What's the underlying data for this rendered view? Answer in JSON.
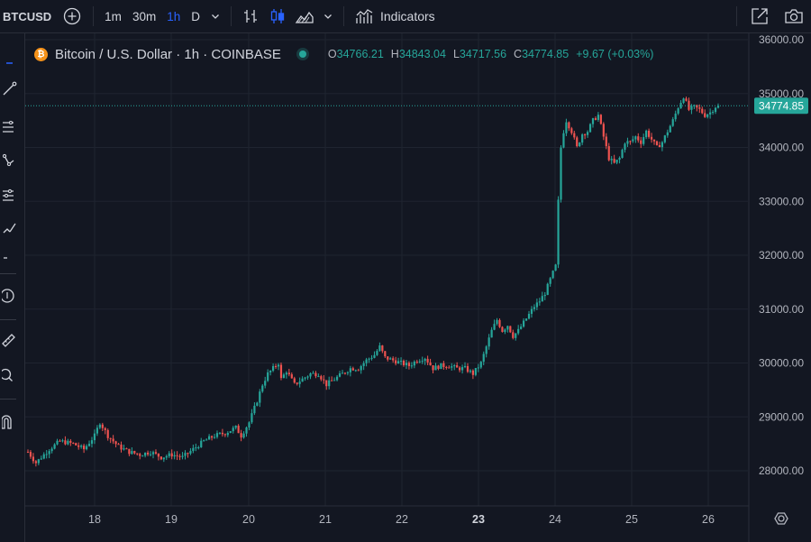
{
  "toolbar": {
    "symbol": "BTCUSD",
    "intervals": [
      {
        "label": "1m",
        "active": false
      },
      {
        "label": "30m",
        "active": false
      },
      {
        "label": "1h",
        "active": true
      },
      {
        "label": "D",
        "active": false
      }
    ],
    "indicators_label": "Indicators"
  },
  "legend": {
    "title": "Bitcoin / U.S. Dollar · 1h · COINBASE",
    "coin_symbol": "₿",
    "o_key": "O",
    "o_val": "34766.21",
    "h_key": "H",
    "h_val": "34843.04",
    "l_key": "L",
    "l_val": "34717.56",
    "c_key": "C",
    "c_val": "34774.85",
    "change": "+9.67 (+0.03%)"
  },
  "colors": {
    "background": "#131722",
    "up": "#26a69a",
    "down": "#ef5350",
    "accent": "#2962ff",
    "grid": "#1f2430"
  },
  "chart_data": {
    "type": "candlestick",
    "price_labels": [
      "36000.00",
      "35000.00",
      "34000.00",
      "33000.00",
      "32000.00",
      "31000.00",
      "30000.00",
      "29000.00",
      "28000.00"
    ],
    "price_values": [
      36000,
      35000,
      34000,
      33000,
      32000,
      31000,
      30000,
      29000,
      28000
    ],
    "date_labels": [
      "18",
      "19",
      "20",
      "21",
      "22",
      "23",
      "24",
      "25",
      "26"
    ],
    "bold_date": "23",
    "last_price": 34774.85,
    "last_price_label": "34774.85",
    "y_range": [
      27500,
      36100
    ],
    "keypoints": [
      [
        0,
        28350
      ],
      [
        3,
        28150
      ],
      [
        8,
        28400
      ],
      [
        12,
        28550
      ],
      [
        17,
        28500
      ],
      [
        21,
        28400
      ],
      [
        25,
        28650
      ],
      [
        27,
        28900
      ],
      [
        30,
        28650
      ],
      [
        34,
        28450
      ],
      [
        38,
        28350
      ],
      [
        42,
        28300
      ],
      [
        46,
        28350
      ],
      [
        50,
        28250
      ],
      [
        54,
        28300
      ],
      [
        58,
        28250
      ],
      [
        62,
        28400
      ],
      [
        66,
        28550
      ],
      [
        70,
        28650
      ],
      [
        74,
        28700
      ],
      [
        78,
        28800
      ],
      [
        80,
        28650
      ],
      [
        83,
        28900
      ],
      [
        86,
        29300
      ],
      [
        88,
        29600
      ],
      [
        90,
        29800
      ],
      [
        92,
        29900
      ],
      [
        94,
        30000
      ],
      [
        95,
        29700
      ],
      [
        97,
        29850
      ],
      [
        100,
        29600
      ],
      [
        103,
        29700
      ],
      [
        106,
        29800
      ],
      [
        109,
        29800
      ],
      [
        112,
        29600
      ],
      [
        115,
        29700
      ],
      [
        118,
        29800
      ],
      [
        121,
        29900
      ],
      [
        124,
        29900
      ],
      [
        127,
        30050
      ],
      [
        130,
        30150
      ],
      [
        132,
        30300
      ],
      [
        134,
        30100
      ],
      [
        137,
        30050
      ],
      [
        140,
        30000
      ],
      [
        143,
        29950
      ],
      [
        146,
        30050
      ],
      [
        149,
        30100
      ],
      [
        152,
        29900
      ],
      [
        155,
        29950
      ],
      [
        158,
        29950
      ],
      [
        161,
        29900
      ],
      [
        164,
        29900
      ],
      [
        167,
        29800
      ],
      [
        170,
        30000
      ],
      [
        172,
        30300
      ],
      [
        174,
        30600
      ],
      [
        176,
        30800
      ],
      [
        178,
        30600
      ],
      [
        180,
        30700
      ],
      [
        182,
        30500
      ],
      [
        184,
        30600
      ],
      [
        186,
        30750
      ],
      [
        188,
        30900
      ],
      [
        190,
        31050
      ],
      [
        192,
        31150
      ],
      [
        194,
        31300
      ],
      [
        196,
        31550
      ],
      [
        198,
        31800
      ],
      [
        199,
        33000
      ],
      [
        200,
        34000
      ],
      [
        201,
        34300
      ],
      [
        202,
        34500
      ],
      [
        204,
        34300
      ],
      [
        206,
        34000
      ],
      [
        208,
        34250
      ],
      [
        210,
        34300
      ],
      [
        212,
        34500
      ],
      [
        214,
        34600
      ],
      [
        216,
        34200
      ],
      [
        218,
        33800
      ],
      [
        220,
        33700
      ],
      [
        222,
        33800
      ],
      [
        224,
        34100
      ],
      [
        226,
        34100
      ],
      [
        228,
        34200
      ],
      [
        230,
        34100
      ],
      [
        232,
        34300
      ],
      [
        234,
        34150
      ],
      [
        236,
        34000
      ],
      [
        238,
        34100
      ],
      [
        240,
        34300
      ],
      [
        242,
        34500
      ],
      [
        244,
        34750
      ],
      [
        246,
        34950
      ],
      [
        248,
        34700
      ],
      [
        250,
        34750
      ],
      [
        252,
        34700
      ],
      [
        254,
        34600
      ],
      [
        256,
        34650
      ],
      [
        258,
        34760
      ]
    ]
  }
}
